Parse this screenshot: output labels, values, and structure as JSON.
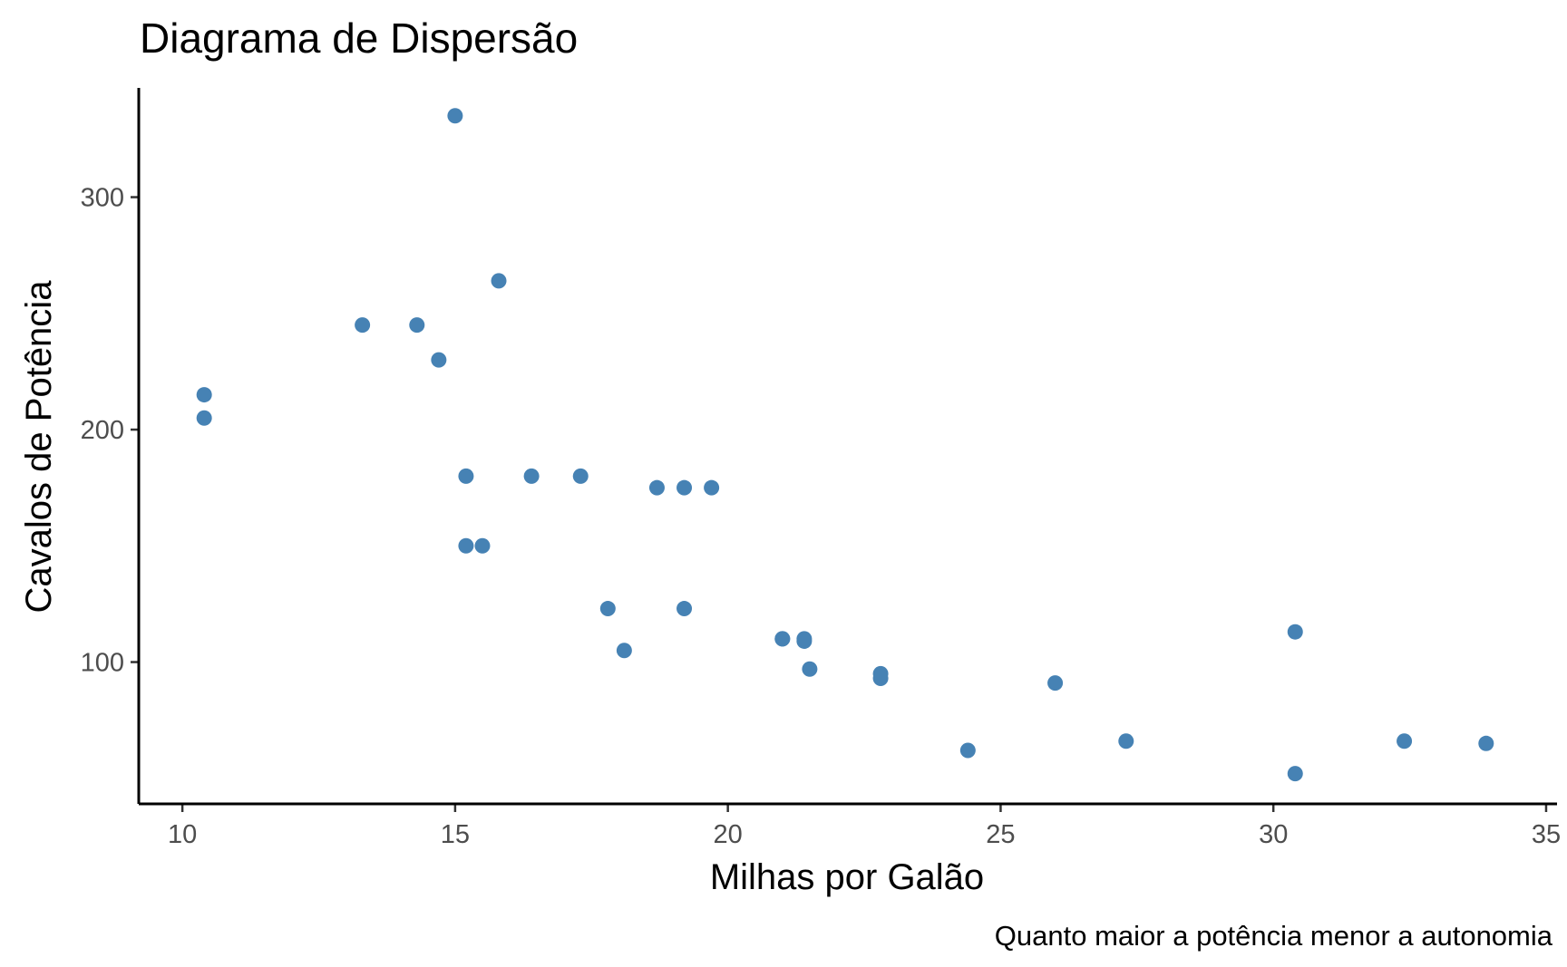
{
  "chart_data": {
    "type": "scatter",
    "title": "Diagrama de Dispersão",
    "xlabel": "Milhas por Galão",
    "ylabel": "Cavalos de Potência",
    "caption": "Quanto maior a potência menor a autonomia",
    "xlim": [
      9.2,
      35.2
    ],
    "ylim": [
      39,
      347
    ],
    "x_ticks": [
      10,
      15,
      20,
      25,
      30,
      35
    ],
    "y_ticks": [
      100,
      200,
      300
    ],
    "x_tick_labels": [
      "10",
      "15",
      "20",
      "25",
      "30",
      "35"
    ],
    "y_tick_labels": [
      "100",
      "200",
      "300"
    ],
    "point_color": "#4682B4",
    "grid": false,
    "points": [
      {
        "x": 21.0,
        "y": 110
      },
      {
        "x": 21.0,
        "y": 110
      },
      {
        "x": 22.8,
        "y": 93
      },
      {
        "x": 21.4,
        "y": 110
      },
      {
        "x": 18.7,
        "y": 175
      },
      {
        "x": 18.1,
        "y": 105
      },
      {
        "x": 14.3,
        "y": 245
      },
      {
        "x": 24.4,
        "y": 62
      },
      {
        "x": 22.8,
        "y": 95
      },
      {
        "x": 19.2,
        "y": 123
      },
      {
        "x": 17.8,
        "y": 123
      },
      {
        "x": 16.4,
        "y": 180
      },
      {
        "x": 17.3,
        "y": 180
      },
      {
        "x": 15.2,
        "y": 180
      },
      {
        "x": 10.4,
        "y": 205
      },
      {
        "x": 10.4,
        "y": 215
      },
      {
        "x": 14.7,
        "y": 230
      },
      {
        "x": 32.4,
        "y": 66
      },
      {
        "x": 30.4,
        "y": 52
      },
      {
        "x": 33.9,
        "y": 65
      },
      {
        "x": 21.5,
        "y": 97
      },
      {
        "x": 15.5,
        "y": 150
      },
      {
        "x": 15.2,
        "y": 150
      },
      {
        "x": 13.3,
        "y": 245
      },
      {
        "x": 19.2,
        "y": 175
      },
      {
        "x": 27.3,
        "y": 66
      },
      {
        "x": 26.0,
        "y": 91
      },
      {
        "x": 30.4,
        "y": 113
      },
      {
        "x": 15.8,
        "y": 264
      },
      {
        "x": 19.7,
        "y": 175
      },
      {
        "x": 15.0,
        "y": 335
      },
      {
        "x": 21.4,
        "y": 109
      }
    ]
  }
}
